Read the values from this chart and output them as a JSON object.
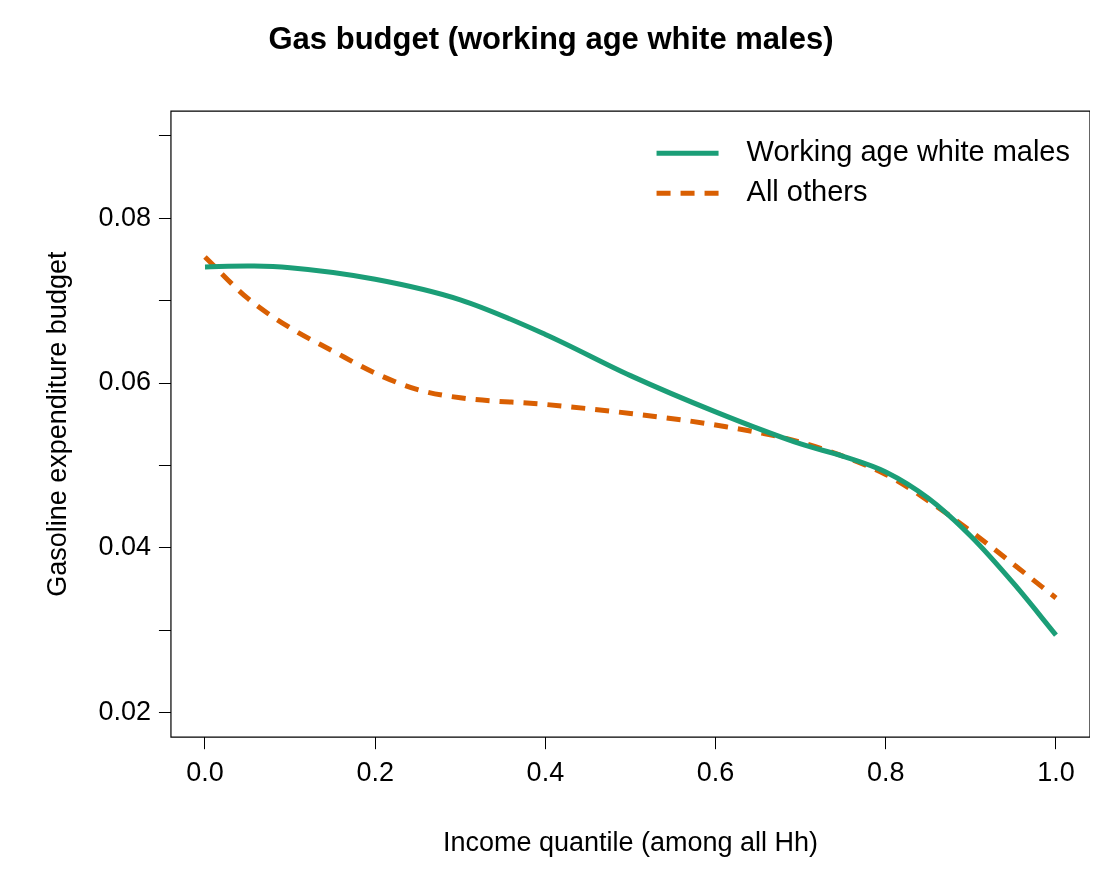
{
  "chart_data": {
    "type": "line",
    "title": "Gas budget (working age white males)",
    "xlabel": "Income quantile (among all Hh)",
    "ylabel": "Gasoline expenditure budget",
    "xlim": [
      -0.04,
      1.04
    ],
    "ylim": [
      0.017,
      0.093
    ],
    "xticks": [
      {
        "value": 0,
        "label": "0.0"
      },
      0.2,
      0.4,
      0.6,
      0.8,
      {
        "value": 1,
        "label": "1.0"
      }
    ],
    "yticks": [
      0.02,
      {
        "value": 0.03,
        "label": null
      },
      0.04,
      {
        "value": 0.05,
        "label": null
      },
      0.06,
      {
        "value": 0.07,
        "label": null
      },
      0.08,
      {
        "value": 0.09,
        "label": null
      }
    ],
    "grid": false,
    "legend": "top right",
    "marker": "none",
    "series": [
      {
        "name": "Working age white males",
        "color": "#1b9e77",
        "line_style": "solid",
        "x": [
          0,
          0.05,
          0.1,
          0.2,
          0.3,
          0.4,
          0.5,
          0.6,
          0.7,
          0.75,
          0.8,
          0.85,
          0.9,
          0.95,
          1.0
        ],
        "values": [
          0.0741,
          0.0742,
          0.074,
          0.0726,
          0.0701,
          0.0659,
          0.0609,
          0.0565,
          0.0526,
          0.0511,
          0.0492,
          0.046,
          0.0414,
          0.0357,
          0.0294
        ]
      },
      {
        "name": "All others",
        "color": "#d95f02",
        "line_style": "dashed",
        "x": [
          0,
          0.05,
          0.1,
          0.15,
          0.2,
          0.25,
          0.3,
          0.4,
          0.5,
          0.6,
          0.7,
          0.8,
          0.85,
          0.9,
          0.95,
          1.0
        ],
        "values": [
          0.0753,
          0.0703,
          0.0667,
          0.0639,
          0.0612,
          0.0592,
          0.0582,
          0.0574,
          0.0563,
          0.0549,
          0.0528,
          0.0489,
          0.0457,
          0.042,
          0.038,
          0.0339
        ]
      }
    ]
  }
}
